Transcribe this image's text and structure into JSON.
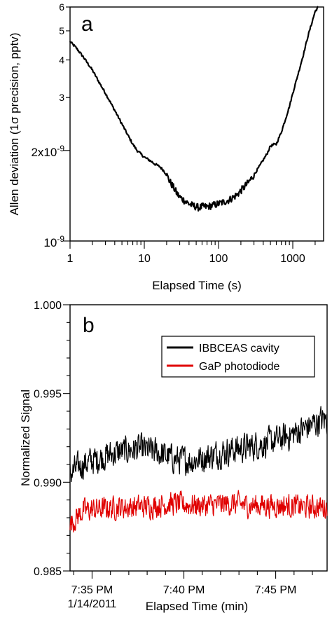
{
  "chart_data": [
    {
      "type": "line",
      "panel_label": "a",
      "xlabel": "Elapsed Time (s)",
      "ylabel": "Allen deviation (1σ precision, pptv)",
      "xscale": "log",
      "yscale": "log",
      "xlim": [
        1,
        2600
      ],
      "ylim": [
        1e-09,
        6e-09
      ],
      "x_ticks": [
        1,
        10,
        100,
        1000
      ],
      "x_tick_labels": [
        "1",
        "10",
        "100",
        "1000"
      ],
      "y_ticks": [
        1e-09,
        2e-09,
        3e-09,
        4e-09,
        5e-09,
        6e-09
      ],
      "y_tick_labels": [
        {
          "base": "10",
          "sup": "-9"
        },
        {
          "base": "2x10",
          "sup": "-9"
        },
        {
          "base": "3",
          "sup": ""
        },
        {
          "base": "4",
          "sup": ""
        },
        {
          "base": "5",
          "sup": ""
        },
        {
          "base": "6",
          "sup": ""
        }
      ],
      "grid": false,
      "series": [
        {
          "color": "#000000",
          "x": [
            1,
            1.2,
            1.5,
            2,
            2.5,
            3,
            4,
            5,
            6,
            7,
            8,
            10,
            12,
            14,
            16,
            18,
            20,
            22,
            25,
            28,
            30,
            35,
            40,
            45,
            50,
            55,
            60,
            70,
            80,
            90,
            100,
            120,
            140,
            160,
            180,
            200,
            250,
            300,
            350,
            400,
            450,
            500,
            550,
            600,
            700,
            800,
            900,
            1000,
            1200,
            1400,
            1600,
            1800,
            2000,
            2200
          ],
          "y": [
            4.6e-09,
            4.4e-09,
            4.1e-09,
            3.7e-09,
            3.35e-09,
            3.1e-09,
            2.72e-09,
            2.45e-09,
            2.25e-09,
            2.1e-09,
            2e-09,
            1.9e-09,
            1.85e-09,
            1.8e-09,
            1.77e-09,
            1.72e-09,
            1.66e-09,
            1.58e-09,
            1.5e-09,
            1.43e-09,
            1.4e-09,
            1.36e-09,
            1.33e-09,
            1.31e-09,
            1.3e-09,
            1.29e-09,
            1.3e-09,
            1.3e-09,
            1.31e-09,
            1.32e-09,
            1.33e-09,
            1.35e-09,
            1.37e-09,
            1.4e-09,
            1.43e-09,
            1.47e-09,
            1.56e-09,
            1.66e-09,
            1.76e-09,
            1.86e-09,
            1.95e-09,
            2.07e-09,
            2.09e-09,
            2.1e-09,
            2.3e-09,
            2.55e-09,
            2.8e-09,
            3.1e-09,
            3.65e-09,
            4.2e-09,
            4.8e-09,
            5.3e-09,
            5.8e-09,
            6e-09
          ]
        }
      ]
    },
    {
      "type": "line",
      "panel_label": "b",
      "xlabel": "Elapsed Time (min)",
      "ylabel": "Normalized Signal",
      "x_unit": "minutes past 7:00 PM on 1/14/2011",
      "xlim": [
        33.8,
        47.8
      ],
      "ylim": [
        0.985,
        1.0
      ],
      "x_ticks": [
        35,
        40,
        45
      ],
      "x_tick_labels": [
        [
          "7:35 PM",
          "1/14/2011"
        ],
        [
          "7:40 PM"
        ],
        [
          "7:45 PM"
        ]
      ],
      "y_ticks": [
        0.985,
        0.99,
        0.995,
        1.0
      ],
      "y_tick_labels": [
        "0.985",
        "0.990",
        "0.995",
        "1.000"
      ],
      "grid": false,
      "legend": "top-right",
      "series": [
        {
          "name": "IBBCEAS cavity",
          "color": "#000000",
          "x": [
            33.8,
            34.5,
            35.5,
            36.5,
            37.5,
            38.5,
            39.5,
            40.5,
            41.5,
            42.5,
            43.5,
            44.5,
            45.5,
            46.5,
            47.5,
            47.8
          ],
          "y": [
            0.9905,
            0.991,
            0.9914,
            0.9917,
            0.9919,
            0.9917,
            0.9913,
            0.9912,
            0.9915,
            0.9918,
            0.992,
            0.9922,
            0.9925,
            0.993,
            0.9935,
            0.9935
          ],
          "noise": 0.0011
        },
        {
          "name": "GaP photodiode",
          "color": "#e00000",
          "x": [
            33.8,
            34.5,
            35.5,
            36.5,
            37.5,
            38.5,
            39.5,
            40.5,
            41.5,
            42.5,
            43.5,
            44.5,
            45.5,
            46.5,
            47.5,
            47.8
          ],
          "y": [
            0.9876,
            0.9884,
            0.9885,
            0.9886,
            0.9886,
            0.9887,
            0.9888,
            0.9887,
            0.9887,
            0.9888,
            0.9887,
            0.9887,
            0.9887,
            0.9886,
            0.9886,
            0.9886
          ],
          "noise": 0.0009
        }
      ]
    }
  ]
}
